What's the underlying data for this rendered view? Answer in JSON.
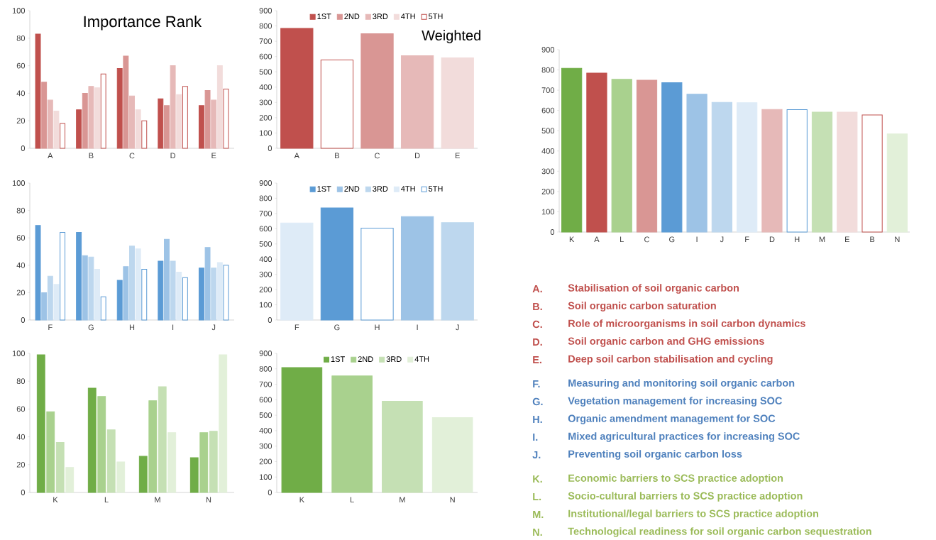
{
  "chart_data": [
    {
      "type": "bar",
      "title": "Importance Rank",
      "categories": [
        "A",
        "B",
        "C",
        "D",
        "E"
      ],
      "ylim": [
        0,
        100
      ],
      "yticks": [
        0,
        20,
        40,
        60,
        80,
        100
      ],
      "series": [
        {
          "color": "#c0504d",
          "values": [
            83,
            28,
            58,
            36,
            31
          ]
        },
        {
          "color": "#d99694",
          "values": [
            48,
            40,
            67,
            31,
            42
          ]
        },
        {
          "color": "#e6b9b8",
          "values": [
            35,
            45,
            38,
            60,
            35
          ]
        },
        {
          "color": "#f2dcdb",
          "values": [
            27,
            44,
            28,
            39,
            60
          ]
        },
        {
          "color": "#c0504d",
          "colors": [
            "#ffffff",
            "#ffffff",
            "#ffffff",
            "#ffffff",
            "#ffffff"
          ],
          "values": [
            18,
            54,
            20,
            45,
            43
          ]
        }
      ]
    },
    {
      "type": "bar",
      "title": "Weighted",
      "categories": [
        "A",
        "B",
        "C",
        "D",
        "E"
      ],
      "ylim": [
        0,
        900
      ],
      "yticks": [
        0,
        100,
        200,
        300,
        400,
        500,
        600,
        700,
        800,
        900
      ],
      "stacked": true,
      "legend": "top",
      "series": [
        {
          "name": "1ST",
          "color": "#c0504d",
          "values": [
            784,
            null,
            null,
            null,
            null
          ]
        },
        {
          "name": "2ND",
          "color": "#d99694",
          "values": [
            null,
            null,
            749,
            null,
            null
          ]
        },
        {
          "name": "3RD",
          "color": "#e6b9b8",
          "values": [
            null,
            null,
            null,
            605,
            null
          ]
        },
        {
          "name": "4TH",
          "color": "#f2dcdb",
          "values": [
            null,
            null,
            null,
            null,
            592
          ]
        },
        {
          "name": "5TH",
          "color": "#c0504d",
          "colors": [
            null,
            "#ffffff",
            null,
            null,
            null
          ],
          "values": [
            null,
            578,
            null,
            null,
            null
          ]
        }
      ]
    },
    {
      "type": "bar",
      "categories": [
        "K",
        "A",
        "L",
        "C",
        "G",
        "I",
        "J",
        "F",
        "D",
        "H",
        "M",
        "E",
        "B",
        "N"
      ],
      "ylim": [
        0,
        900
      ],
      "yticks": [
        0,
        100,
        200,
        300,
        400,
        500,
        600,
        700,
        800,
        900
      ],
      "stacked": true,
      "series": [
        {
          "color": "#c0504d",
          "colors": [
            null,
            "#c0504d",
            null,
            "#d99694",
            null,
            null,
            null,
            null,
            "#e6b9b8",
            null,
            null,
            "#f2dcdb",
            "#ffffff",
            null
          ],
          "values": [
            null,
            784,
            null,
            749,
            null,
            null,
            null,
            null,
            605,
            null,
            null,
            592,
            578,
            null
          ]
        },
        {
          "color": "#5b9bd5",
          "colors": [
            null,
            null,
            null,
            null,
            "#5b9bd5",
            "#9dc3e6",
            "#bdd7ee",
            "#deebf7",
            null,
            "#ffffff",
            null,
            null,
            null,
            null
          ],
          "values": [
            null,
            null,
            null,
            null,
            737,
            680,
            640,
            638,
            null,
            604,
            null,
            null,
            null,
            null
          ]
        },
        {
          "colors": [
            "#70ad47",
            null,
            "#a9d18e",
            null,
            null,
            null,
            null,
            null,
            null,
            null,
            "#c5e0b4",
            null,
            null,
            "#e2f0d9"
          ],
          "values": [
            808,
            null,
            754,
            null,
            null,
            null,
            null,
            null,
            null,
            null,
            592,
            null,
            null,
            484
          ]
        }
      ]
    },
    {
      "type": "bar",
      "categories": [
        "F",
        "G",
        "H",
        "I",
        "J"
      ],
      "ylim": [
        0,
        100
      ],
      "yticks": [
        0,
        20,
        40,
        60,
        80,
        100
      ],
      "series": [
        {
          "color": "#5b9bd5",
          "values": [
            69,
            64,
            29,
            43,
            38
          ]
        },
        {
          "color": "#9dc3e6",
          "values": [
            20,
            47,
            39,
            59,
            53
          ]
        },
        {
          "color": "#bdd7ee",
          "values": [
            32,
            46,
            54,
            43,
            38
          ]
        },
        {
          "color": "#deebf7",
          "values": [
            26,
            37,
            52,
            35,
            42
          ]
        },
        {
          "color": "#5b9bd5",
          "colors": [
            "#ffffff",
            "#ffffff",
            "#ffffff",
            "#ffffff",
            "#ffffff"
          ],
          "values": [
            64,
            17,
            37,
            31,
            40
          ]
        }
      ]
    },
    {
      "type": "bar",
      "categories": [
        "F",
        "G",
        "H",
        "I",
        "J"
      ],
      "ylim": [
        0,
        900
      ],
      "yticks": [
        0,
        100,
        200,
        300,
        400,
        500,
        600,
        700,
        800,
        900
      ],
      "stacked": true,
      "legend": "top",
      "series": [
        {
          "name": "1ST",
          "color": "#5b9bd5",
          "values": [
            null,
            737,
            null,
            null,
            null
          ]
        },
        {
          "name": "2ND",
          "color": "#9dc3e6",
          "values": [
            null,
            null,
            null,
            680,
            null
          ]
        },
        {
          "name": "3RD",
          "color": "#bdd7ee",
          "values": [
            null,
            null,
            null,
            null,
            640
          ]
        },
        {
          "name": "4TH",
          "color": "#deebf7",
          "values": [
            638,
            null,
            null,
            null,
            null
          ]
        },
        {
          "name": "5TH",
          "color": "#5b9bd5",
          "colors": [
            null,
            null,
            "#ffffff",
            null,
            null
          ],
          "values": [
            null,
            null,
            604,
            null,
            null
          ]
        }
      ]
    },
    {
      "type": "bar",
      "categories": [
        "K",
        "L",
        "M",
        "N"
      ],
      "ylim": [
        0,
        100
      ],
      "yticks": [
        0,
        20,
        40,
        60,
        80,
        100
      ],
      "series": [
        {
          "color": "#70ad47",
          "values": [
            99,
            75,
            26,
            25
          ]
        },
        {
          "color": "#a9d18e",
          "values": [
            58,
            69,
            66,
            43
          ]
        },
        {
          "color": "#c5e0b4",
          "values": [
            36,
            45,
            76,
            44
          ]
        },
        {
          "color": "#e2f0d9",
          "values": [
            18,
            22,
            43,
            99
          ]
        }
      ]
    },
    {
      "type": "bar",
      "categories": [
        "K",
        "L",
        "M",
        "N"
      ],
      "ylim": [
        0,
        900
      ],
      "yticks": [
        0,
        100,
        200,
        300,
        400,
        500,
        600,
        700,
        800,
        900
      ],
      "stacked": true,
      "legend": "top",
      "series": [
        {
          "name": "1ST",
          "color": "#70ad47",
          "values": [
            808,
            null,
            null,
            null
          ]
        },
        {
          "name": "2ND",
          "color": "#a9d18e",
          "values": [
            null,
            754,
            null,
            null
          ]
        },
        {
          "name": "3RD",
          "color": "#c5e0b4",
          "values": [
            null,
            null,
            590,
            null
          ]
        },
        {
          "name": "4TH",
          "color": "#e2f0d9",
          "values": [
            null,
            null,
            null,
            485
          ]
        }
      ]
    },
    {
      "type": "other",
      "categories": [
        "A.",
        "B.",
        "C.",
        "D.",
        "E.",
        "F.",
        "G.",
        "H.",
        "I.",
        "J.",
        "K.",
        "L.",
        "M.",
        "N."
      ],
      "colors": [
        "#c0504d",
        "#c0504d",
        "#c0504d",
        "#c0504d",
        "#c0504d",
        "#4f81bd",
        "#4f81bd",
        "#4f81bd",
        "#4f81bd",
        "#4f81bd",
        "#9bbb59",
        "#9bbb59",
        "#9bbb59",
        "#9bbb59"
      ],
      "annotations": [
        "Stabilisation of soil organic carbon",
        "Soil organic carbon saturation",
        "Role of microorganisms in soil carbon dynamics",
        "Soil organic carbon and GHG emissions",
        "Deep soil carbon stabilisation and cycling",
        "Measuring and monitoring soil organic carbon",
        "Vegetation management for increasing SOC",
        "Organic amendment management for SOC",
        "Mixed agricultural practices for increasing SOC",
        "Preventing soil organic carbon loss",
        "Economic barriers to SCS practice adoption",
        "Socio-cultural barriers to SCS practice adoption",
        "Institutional/legal barriers to SCS practice adoption",
        "Technological readiness for soil organic carbon sequestration"
      ]
    }
  ]
}
